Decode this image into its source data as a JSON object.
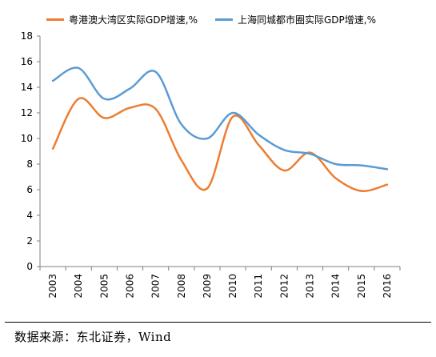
{
  "chart_data": {
    "type": "line",
    "categories": [
      "2003",
      "2004",
      "2005",
      "2006",
      "2007",
      "2008",
      "2009",
      "2010",
      "2011",
      "2012",
      "2013",
      "2014",
      "2015",
      "2016"
    ],
    "ylim": [
      0,
      18
    ],
    "yticks": [
      0,
      2,
      4,
      6,
      8,
      10,
      12,
      14,
      16,
      18
    ],
    "grid": false,
    "legend_position": "top",
    "series": [
      {
        "name": "粤港澳大湾区实际GDP增速,%",
        "color": "#ED7D31",
        "values": [
          9.2,
          13.1,
          11.6,
          12.4,
          12.3,
          8.3,
          6.1,
          11.7,
          9.5,
          7.5,
          8.9,
          6.9,
          5.9,
          6.4
        ]
      },
      {
        "name": "上海同城都市圈实际GDP增速,%",
        "color": "#5B9BD5",
        "values": [
          14.5,
          15.5,
          13.1,
          13.9,
          15.2,
          11.1,
          10.0,
          12.0,
          10.3,
          9.1,
          8.8,
          8.0,
          7.9,
          7.6
        ]
      }
    ]
  },
  "footer": {
    "source": "数据来源：东北证券，Wind"
  }
}
